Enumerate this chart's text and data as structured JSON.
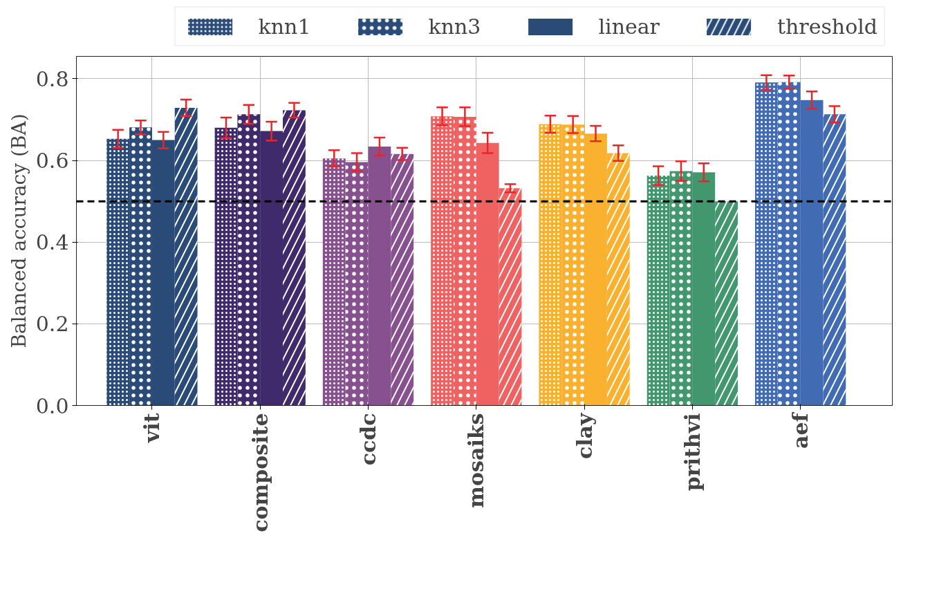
{
  "chart_data": {
    "type": "bar",
    "ylabel": "Balanced accuracy (BA)",
    "categories": [
      "vit",
      "composite",
      "ccdc",
      "mosaiks",
      "clay",
      "prithvi",
      "aef"
    ],
    "series": [
      {
        "name": "knn1",
        "colors": [
          "#2a4a78",
          "#3f2a6b",
          "#87508f",
          "#ef6262",
          "#fbb130",
          "#43976f",
          "#416bb3"
        ],
        "values": [
          0.653,
          0.68,
          0.605,
          0.708,
          0.689,
          0.563,
          0.791
        ],
        "errors": [
          0.022,
          0.025,
          0.02,
          0.022,
          0.021,
          0.023,
          0.018
        ]
      },
      {
        "name": "knn3",
        "colors": [
          "#2a4a78",
          "#3f2a6b",
          "#87508f",
          "#ef6262",
          "#fbb130",
          "#43976f",
          "#416bb3"
        ],
        "values": [
          0.681,
          0.713,
          0.596,
          0.707,
          0.688,
          0.574,
          0.792
        ],
        "errors": [
          0.017,
          0.023,
          0.022,
          0.023,
          0.021,
          0.024,
          0.016
        ]
      },
      {
        "name": "linear",
        "colors": [
          "#2a4a78",
          "#3f2a6b",
          "#87508f",
          "#ef6262",
          "#fbb130",
          "#43976f",
          "#416bb3"
        ],
        "values": [
          0.65,
          0.672,
          0.634,
          0.643,
          0.666,
          0.571,
          0.748
        ],
        "errors": [
          0.02,
          0.023,
          0.022,
          0.025,
          0.019,
          0.022,
          0.021
        ]
      },
      {
        "name": "threshold",
        "colors": [
          "#2a4a78",
          "#3f2a6b",
          "#87508f",
          "#ef6262",
          "#fbb130",
          "#43976f",
          "#416bb3"
        ],
        "values": [
          0.729,
          0.723,
          0.616,
          0.532,
          0.618,
          0.5,
          0.713
        ],
        "errors": [
          0.02,
          0.018,
          0.015,
          0.01,
          0.019,
          null,
          0.02
        ]
      }
    ],
    "ylim": [
      0,
      0.855
    ],
    "yticks": [
      {
        "value": 0,
        "label": "0.0"
      },
      {
        "value": 0.2,
        "label": "0.2"
      },
      {
        "value": 0.4,
        "label": "0.4"
      },
      {
        "value": 0.6,
        "label": "0.6"
      },
      {
        "value": 0.8,
        "label": "0.8"
      }
    ],
    "ref_lines": [
      {
        "axis": "y",
        "value": 0.5,
        "color": "#000000",
        "line_style": "dashed"
      }
    ],
    "grid": true,
    "legend": "top"
  }
}
